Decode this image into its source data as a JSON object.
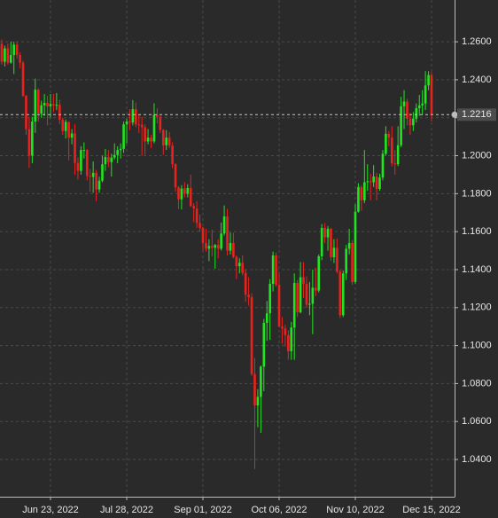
{
  "chart_data": {
    "type": "candlestick",
    "up_color": "#1fe61f",
    "down_color": "#e8231e",
    "grid": true,
    "ylim": [
      1.0204,
      1.282
    ],
    "yticks": [
      {
        "value": 1.04,
        "label": "1.0400"
      },
      {
        "value": 1.06,
        "label": "1.0600"
      },
      {
        "value": 1.08,
        "label": "1.0800"
      },
      {
        "value": 1.1,
        "label": "1.1000"
      },
      {
        "value": 1.12,
        "label": "1.1200"
      },
      {
        "value": 1.14,
        "label": "1.1400"
      },
      {
        "value": 1.16,
        "label": "1.1600"
      },
      {
        "value": 1.18,
        "label": "1.1800"
      },
      {
        "value": 1.2,
        "label": "1.2000"
      },
      {
        "value": 1.22,
        "label": "1.2200"
      },
      {
        "value": 1.24,
        "label": "1.2400"
      },
      {
        "value": 1.26,
        "label": "1.2600"
      }
    ],
    "xticks": [
      {
        "value": "2022-06-23",
        "label": "Jun 23, 2022"
      },
      {
        "value": "2022-07-28",
        "label": "Jul 28, 2022"
      },
      {
        "value": "2022-09-01",
        "label": "Sep 01, 2022"
      },
      {
        "value": "2022-10-06",
        "label": "Oct 06, 2022"
      },
      {
        "value": "2022-11-10",
        "label": "Nov 10, 2022"
      },
      {
        "value": "2022-12-15",
        "label": "Dec 15, 2022"
      }
    ],
    "x": [
      "2022-06-01",
      "2022-06-02",
      "2022-06-03",
      "2022-06-06",
      "2022-06-07",
      "2022-06-08",
      "2022-06-09",
      "2022-06-10",
      "2022-06-13",
      "2022-06-14",
      "2022-06-15",
      "2022-06-16",
      "2022-06-17",
      "2022-06-20",
      "2022-06-21",
      "2022-06-22",
      "2022-06-23",
      "2022-06-24",
      "2022-06-27",
      "2022-06-28",
      "2022-06-29",
      "2022-06-30",
      "2022-07-01",
      "2022-07-04",
      "2022-07-05",
      "2022-07-06",
      "2022-07-07",
      "2022-07-08",
      "2022-07-11",
      "2022-07-12",
      "2022-07-13",
      "2022-07-14",
      "2022-07-15",
      "2022-07-18",
      "2022-07-19",
      "2022-07-20",
      "2022-07-21",
      "2022-07-22",
      "2022-07-25",
      "2022-07-26",
      "2022-07-27",
      "2022-07-28",
      "2022-07-29",
      "2022-08-01",
      "2022-08-02",
      "2022-08-03",
      "2022-08-04",
      "2022-08-05",
      "2022-08-08",
      "2022-08-09",
      "2022-08-10",
      "2022-08-11",
      "2022-08-12",
      "2022-08-15",
      "2022-08-16",
      "2022-08-17",
      "2022-08-18",
      "2022-08-19",
      "2022-08-22",
      "2022-08-23",
      "2022-08-24",
      "2022-08-25",
      "2022-08-26",
      "2022-08-29",
      "2022-08-30",
      "2022-08-31",
      "2022-09-01",
      "2022-09-02",
      "2022-09-05",
      "2022-09-06",
      "2022-09-07",
      "2022-09-08",
      "2022-09-09",
      "2022-09-12",
      "2022-09-13",
      "2022-09-14",
      "2022-09-15",
      "2022-09-16",
      "2022-09-19",
      "2022-09-20",
      "2022-09-21",
      "2022-09-22",
      "2022-09-23",
      "2022-09-26",
      "2022-09-27",
      "2022-09-28",
      "2022-09-29",
      "2022-09-30",
      "2022-10-03",
      "2022-10-04",
      "2022-10-05",
      "2022-10-06",
      "2022-10-07",
      "2022-10-10",
      "2022-10-11",
      "2022-10-12",
      "2022-10-13",
      "2022-10-14",
      "2022-10-17",
      "2022-10-18",
      "2022-10-19",
      "2022-10-20",
      "2022-10-21",
      "2022-10-24",
      "2022-10-25",
      "2022-10-26",
      "2022-10-27",
      "2022-10-28",
      "2022-10-31",
      "2022-11-01",
      "2022-11-02",
      "2022-11-03",
      "2022-11-04",
      "2022-11-07",
      "2022-11-08",
      "2022-11-09",
      "2022-11-10",
      "2022-11-11",
      "2022-11-14",
      "2022-11-15",
      "2022-11-16",
      "2022-11-17",
      "2022-11-18",
      "2022-11-21",
      "2022-11-22",
      "2022-11-23",
      "2022-11-24",
      "2022-11-25",
      "2022-11-28",
      "2022-11-29",
      "2022-11-30",
      "2022-12-01",
      "2022-12-02",
      "2022-12-05",
      "2022-12-06",
      "2022-12-07",
      "2022-12-08",
      "2022-12-09",
      "2022-12-12",
      "2022-12-13",
      "2022-12-14",
      "2022-12-15"
    ],
    "open": [
      1.259,
      1.2495,
      1.2565,
      1.249,
      1.253,
      1.2585,
      1.253,
      1.249,
      1.2315,
      1.214,
      1.2,
      1.218,
      1.2348,
      1.2222,
      1.2265,
      1.2278,
      1.226,
      1.2272,
      1.2266,
      1.2268,
      1.219,
      1.213,
      1.2178,
      1.2095,
      1.2117,
      1.1962,
      1.192,
      1.203,
      1.203,
      1.1893,
      1.1888,
      1.191,
      1.1822,
      1.1868,
      1.1955,
      1.1993,
      1.1966,
      1.199,
      1.2004,
      1.203,
      1.2036,
      1.2165,
      1.218,
      1.2175,
      1.2245,
      1.2165,
      1.2163,
      1.215,
      1.2075,
      1.2095,
      1.2075,
      1.2215,
      1.2205,
      1.2135,
      1.2055,
      1.2095,
      1.2053,
      1.1955,
      1.1833,
      1.177,
      1.1827,
      1.18,
      1.183,
      1.1735,
      1.1722,
      1.1646,
      1.162,
      1.154,
      1.151,
      1.1525,
      1.1515,
      1.153,
      1.151,
      1.159,
      1.168,
      1.15,
      1.154,
      1.1467,
      1.1418,
      1.1436,
      1.1383,
      1.1268,
      1.1255,
      1.085,
      1.0685,
      1.073,
      1.0889,
      1.112,
      1.117,
      1.1325,
      1.1475,
      1.132,
      1.11,
      1.109,
      1.1055,
      1.097,
      1.1095,
      1.133,
      1.1175,
      1.136,
      1.1325,
      1.1215,
      1.122,
      1.1305,
      1.129,
      1.147,
      1.162,
      1.157,
      1.1615,
      1.1465,
      1.1515,
      1.139,
      1.116,
      1.138,
      1.151,
      1.154,
      1.1335,
      1.1705,
      1.1835,
      1.1765,
      1.186,
      1.1865,
      1.186,
      1.189,
      1.1825,
      1.1885,
      1.201,
      1.2115,
      1.2095,
      1.196,
      1.1955,
      1.2055,
      1.226,
      1.2285,
      1.2195,
      1.216,
      1.2195,
      1.225,
      1.2265,
      1.2275,
      1.237,
      1.2425
    ],
    "high": [
      1.2612,
      1.258,
      1.259,
      1.26,
      1.26,
      1.26,
      1.2545,
      1.25,
      1.232,
      1.2205,
      1.2205,
      1.2406,
      1.2355,
      1.229,
      1.2325,
      1.2315,
      1.2325,
      1.2325,
      1.233,
      1.2295,
      1.22,
      1.219,
      1.218,
      1.214,
      1.2165,
      1.199,
      1.205,
      1.207,
      1.2035,
      1.193,
      1.197,
      1.1925,
      1.189,
      1.2,
      1.2035,
      1.203,
      1.201,
      1.2065,
      1.205,
      1.2065,
      1.218,
      1.2195,
      1.2245,
      1.2293,
      1.228,
      1.2215,
      1.2205,
      1.2165,
      1.214,
      1.211,
      1.2276,
      1.225,
      1.221,
      1.214,
      1.2135,
      1.2125,
      1.207,
      1.196,
      1.184,
      1.1845,
      1.186,
      1.185,
      1.19,
      1.175,
      1.176,
      1.169,
      1.1625,
      1.1615,
      1.156,
      1.161,
      1.1535,
      1.156,
      1.1648,
      1.1738,
      1.172,
      1.1595,
      1.1595,
      1.1475,
      1.146,
      1.1475,
      1.14,
      1.136,
      1.1275,
      1.0935,
      1.077,
      1.0895,
      1.114,
      1.1235,
      1.135,
      1.1495,
      1.149,
      1.1385,
      1.115,
      1.111,
      1.108,
      1.1125,
      1.138,
      1.1345,
      1.144,
      1.144,
      1.1365,
      1.1335,
      1.14,
      1.141,
      1.148,
      1.164,
      1.1645,
      1.163,
      1.162,
      1.156,
      1.1565,
      1.14,
      1.1395,
      1.153,
      1.1615,
      1.1555,
      1.1745,
      1.1855,
      1.1845,
      1.203,
      1.1955,
      1.1905,
      1.195,
      1.191,
      1.1905,
      1.203,
      1.2155,
      1.213,
      1.2155,
      1.203,
      1.2155,
      1.231,
      1.2345,
      1.23,
      1.2225,
      1.223,
      1.2275,
      1.232,
      1.2345,
      1.2445,
      1.2445,
      1.244
    ],
    "low": [
      1.248,
      1.247,
      1.248,
      1.2485,
      1.243,
      1.251,
      1.246,
      1.231,
      1.211,
      1.1935,
      1.196,
      1.212,
      1.218,
      1.22,
      1.221,
      1.216,
      1.22,
      1.223,
      1.224,
      1.2165,
      1.211,
      1.209,
      1.1975,
      1.206,
      1.19,
      1.1875,
      1.19,
      1.1985,
      1.187,
      1.181,
      1.1805,
      1.176,
      1.1805,
      1.186,
      1.192,
      1.194,
      1.189,
      1.198,
      1.196,
      1.1985,
      1.2015,
      1.2065,
      1.2135,
      1.216,
      1.215,
      1.212,
      1.2,
      1.2005,
      1.206,
      1.204,
      1.2065,
      1.217,
      1.212,
      1.2005,
      1.203,
      1.204,
      1.1935,
      1.181,
      1.172,
      1.1717,
      1.178,
      1.178,
      1.173,
      1.165,
      1.162,
      1.16,
      1.15,
      1.1495,
      1.1445,
      1.147,
      1.1405,
      1.146,
      1.15,
      1.158,
      1.1475,
      1.148,
      1.146,
      1.135,
      1.138,
      1.137,
      1.123,
      1.121,
      1.084,
      1.035,
      1.057,
      1.054,
      1.076,
      1.1025,
      1.103,
      1.1285,
      1.131,
      1.1095,
      1.101,
      1.0995,
      1.0925,
      1.0925,
      1.0925,
      1.115,
      1.117,
      1.125,
      1.12,
      1.116,
      1.106,
      1.126,
      1.128,
      1.145,
      1.154,
      1.15,
      1.1445,
      1.1435,
      1.138,
      1.1145,
      1.115,
      1.1345,
      1.148,
      1.132,
      1.1325,
      1.17,
      1.171,
      1.175,
      1.1815,
      1.1765,
      1.1835,
      1.1765,
      1.1815,
      1.187,
      1.2,
      1.205,
      1.1945,
      1.19,
      1.1945,
      1.2045,
      1.214,
      1.216,
      1.211,
      1.213,
      1.2175,
      1.221,
      1.2215,
      1.224,
      1.2345,
      1.218
    ],
    "close": [
      1.2495,
      1.2565,
      1.249,
      1.253,
      1.2585,
      1.253,
      1.249,
      1.2315,
      1.214,
      1.2,
      1.218,
      1.2348,
      1.2222,
      1.2265,
      1.2278,
      1.226,
      1.2272,
      1.2266,
      1.2268,
      1.219,
      1.213,
      1.2178,
      1.2095,
      1.2117,
      1.1962,
      1.192,
      1.203,
      1.203,
      1.1893,
      1.1888,
      1.191,
      1.1822,
      1.1868,
      1.1955,
      1.1993,
      1.1966,
      1.199,
      1.2004,
      1.203,
      1.2036,
      1.2165,
      1.218,
      1.2175,
      1.2245,
      1.2165,
      1.2163,
      1.215,
      1.2075,
      1.2095,
      1.2075,
      1.2215,
      1.2205,
      1.2135,
      1.2055,
      1.2095,
      1.2053,
      1.1955,
      1.1833,
      1.177,
      1.1827,
      1.18,
      1.183,
      1.1735,
      1.1722,
      1.1646,
      1.162,
      1.154,
      1.151,
      1.1525,
      1.1515,
      1.153,
      1.151,
      1.159,
      1.168,
      1.15,
      1.154,
      1.1467,
      1.1418,
      1.1436,
      1.1383,
      1.1268,
      1.1255,
      1.085,
      1.0685,
      1.073,
      1.0889,
      1.112,
      1.117,
      1.1325,
      1.1475,
      1.132,
      1.11,
      1.109,
      1.1055,
      1.097,
      1.1095,
      1.133,
      1.1175,
      1.136,
      1.1325,
      1.1215,
      1.122,
      1.1305,
      1.129,
      1.147,
      1.162,
      1.157,
      1.1615,
      1.1465,
      1.1515,
      1.139,
      1.116,
      1.138,
      1.151,
      1.154,
      1.1335,
      1.1705,
      1.1835,
      1.1765,
      1.186,
      1.1865,
      1.186,
      1.189,
      1.1825,
      1.1885,
      1.201,
      1.2115,
      1.2095,
      1.196,
      1.1955,
      1.2055,
      1.226,
      1.2285,
      1.2195,
      1.216,
      1.2195,
      1.225,
      1.2265,
      1.2275,
      1.237,
      1.2425,
      1.2216
    ]
  }
}
